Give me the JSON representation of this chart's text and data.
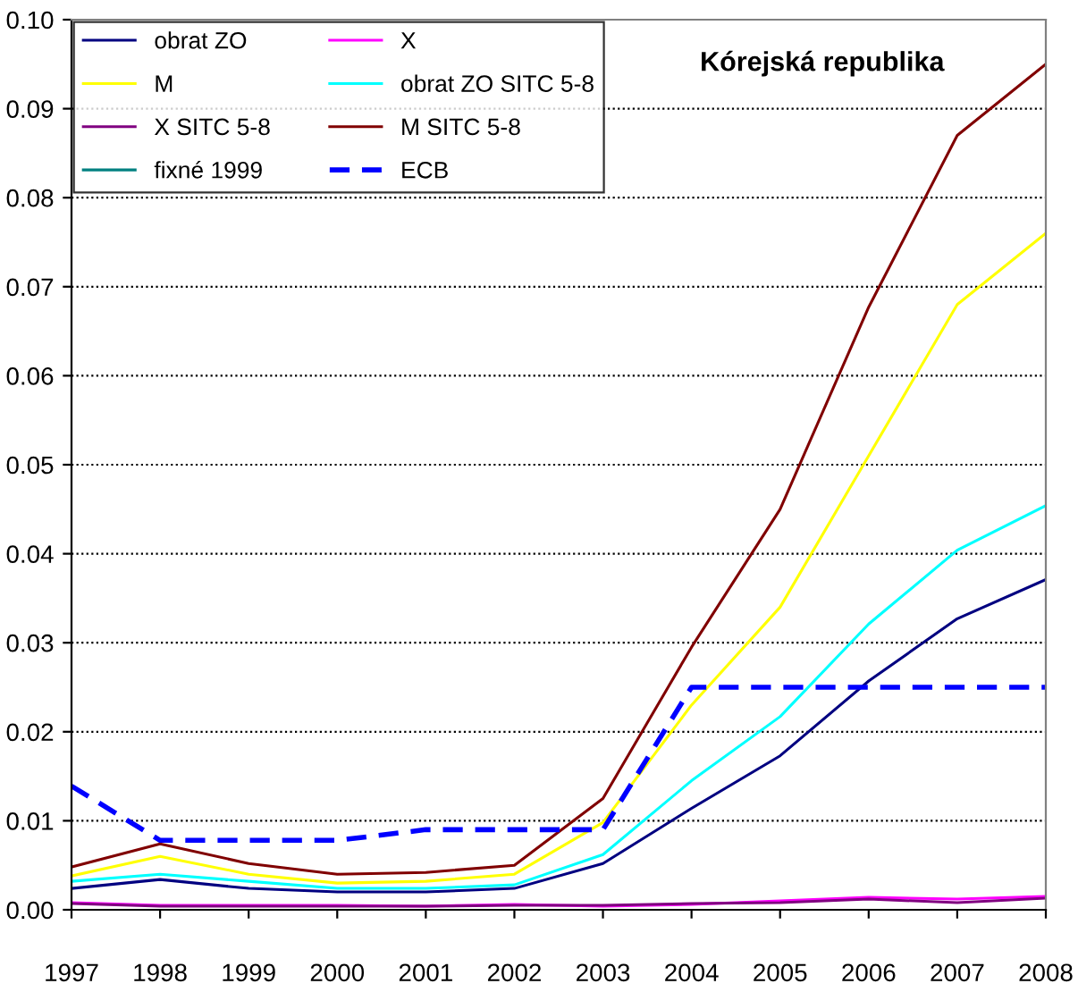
{
  "chart_data": {
    "type": "line",
    "title": "Kórejská republika",
    "categories": [
      "1997",
      "1998",
      "1999",
      "2000",
      "2001",
      "2002",
      "2003",
      "2004",
      "2005",
      "2006",
      "2007",
      "2008"
    ],
    "series": [
      {
        "name": "obrat ZO",
        "color": "#000080",
        "values": [
          0.0024,
          0.0034,
          0.0024,
          0.002,
          0.002,
          0.0024,
          0.0052,
          0.0114,
          0.0173,
          0.0257,
          0.0327,
          0.0371
        ]
      },
      {
        "name": "X",
        "color": "#ff00ff",
        "values": [
          0.0008,
          0.0005,
          0.0005,
          0.0005,
          0.0004,
          0.0006,
          0.0004,
          0.0006,
          0.001,
          0.0014,
          0.0012,
          0.0015
        ]
      },
      {
        "name": "M",
        "color": "#ffff00",
        "values": [
          0.0038,
          0.006,
          0.004,
          0.003,
          0.0032,
          0.004,
          0.0098,
          0.023,
          0.034,
          0.051,
          0.068,
          0.076
        ]
      },
      {
        "name": "obrat ZO SITC 5-8",
        "color": "#00ffff",
        "values": [
          0.0032,
          0.004,
          0.0032,
          0.0024,
          0.0024,
          0.0028,
          0.0062,
          0.0145,
          0.0217,
          0.0321,
          0.0404,
          0.0454
        ]
      },
      {
        "name": "X SITC 5-8",
        "color": "#800080",
        "values": [
          0.0007,
          0.0004,
          0.0004,
          0.0004,
          0.0004,
          0.0005,
          0.0005,
          0.0007,
          0.0008,
          0.0012,
          0.0008,
          0.0013
        ]
      },
      {
        "name": "M SITC 5-8",
        "color": "#800000",
        "values": [
          0.0048,
          0.0074,
          0.0052,
          0.004,
          0.0042,
          0.005,
          0.0125,
          0.0295,
          0.045,
          0.0677,
          0.087,
          0.095
        ]
      },
      {
        "name": "fixné 1999",
        "color": "#008080",
        "values": [
          null,
          null,
          null,
          null,
          null,
          null,
          null,
          null,
          null,
          null,
          null,
          null
        ]
      },
      {
        "name": "ECB",
        "color": "#0000ff",
        "line_style": "dashed",
        "values": [
          0.0139,
          0.0078,
          0.0078,
          0.0078,
          0.009,
          0.009,
          0.009,
          0.025,
          0.025,
          0.025,
          0.025,
          0.025
        ]
      }
    ],
    "ylim": [
      0,
      0.1
    ],
    "yticks": [
      {
        "value": 0,
        "label": "0.00"
      },
      {
        "value": 0.01,
        "label": "0.01"
      },
      {
        "value": 0.02,
        "label": "0.02"
      },
      {
        "value": 0.03,
        "label": "0.03"
      },
      {
        "value": 0.04,
        "label": "0.04"
      },
      {
        "value": 0.05,
        "label": "0.05"
      },
      {
        "value": 0.06,
        "label": "0.06"
      },
      {
        "value": 0.07,
        "label": "0.07"
      },
      {
        "value": 0.08,
        "label": "0.08"
      },
      {
        "value": 0.09,
        "label": "0.09"
      },
      {
        "value": 0.1,
        "label": "0.10"
      }
    ],
    "grid": "y",
    "legend": "top left",
    "marker": "none",
    "line_style": "solid"
  }
}
